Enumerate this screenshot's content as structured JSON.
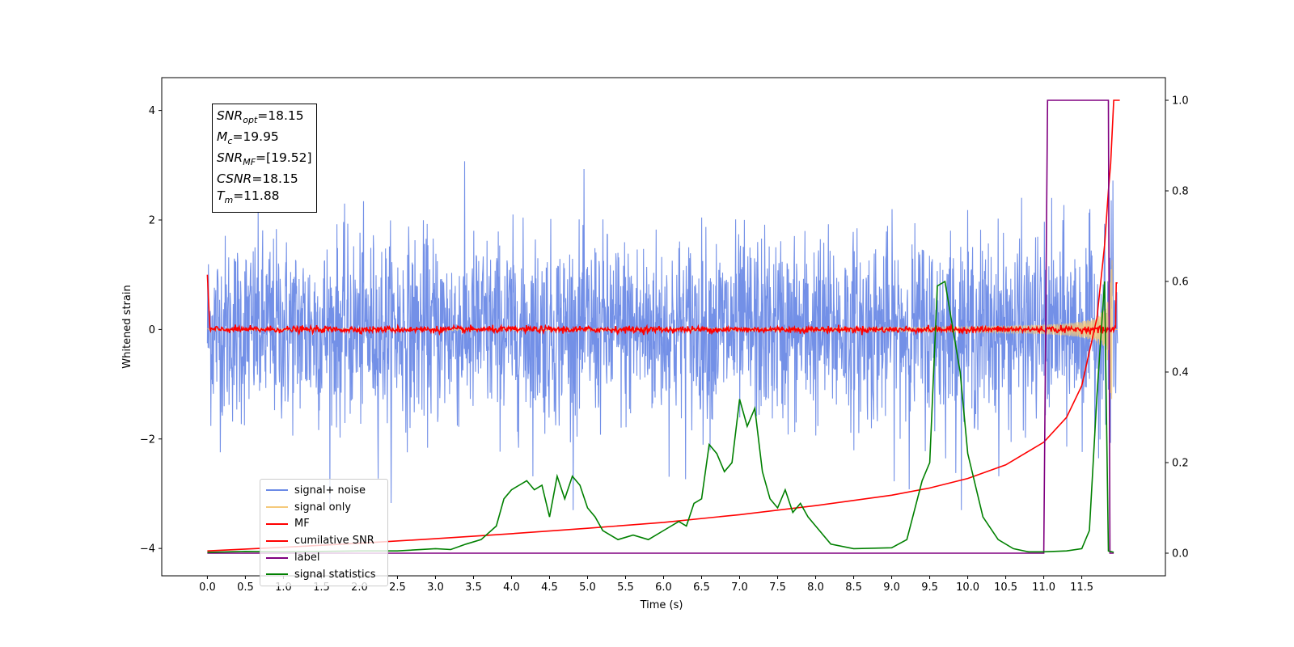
{
  "chart_data": {
    "type": "line",
    "xlabel": "Time (s)",
    "ylabel": "Whitened strain",
    "x_ticks": [
      "0.0",
      "0.5",
      "1.0",
      "1.5",
      "2.0",
      "2.5",
      "3.0",
      "3.5",
      "4.0",
      "4.5",
      "5.0",
      "5.5",
      "6.0",
      "6.5",
      "7.0",
      "7.5",
      "8.0",
      "8.5",
      "9.0",
      "9.5",
      "10.0",
      "10.5",
      "11.0",
      "11.5"
    ],
    "y_left_ticks": [
      "−4",
      "−2",
      "0",
      "2",
      "4"
    ],
    "y_right_ticks": [
      "0.0",
      "0.2",
      "0.4",
      "0.6",
      "0.8",
      "1.0"
    ],
    "xlim": [
      -0.6,
      12.6
    ],
    "ylim_left": [
      -4.5,
      4.6
    ],
    "ylim_right": [
      -0.05,
      1.05
    ],
    "grid": false,
    "legend_position": "lower-left",
    "series": [
      {
        "name": "signal+ noise",
        "color": "#6b8ae6",
        "axis": "left",
        "description": "noisy whitened strain, amplitude ~ ±2 with peaks to ~3"
      },
      {
        "name": "signal only",
        "color": "#f5c97a",
        "axis": "left",
        "description": "chirp growing from 0 to ~±1.5 near 11.85 s"
      },
      {
        "name": "MF",
        "color": "#ff0000",
        "axis": "left",
        "description": "matched-filter output, ~0 with small noise"
      },
      {
        "name": "cumilative SNR",
        "color": "#ff0000",
        "axis": "right",
        "x": [
          0.0,
          1.0,
          2.0,
          3.0,
          4.0,
          5.0,
          6.0,
          7.0,
          8.0,
          9.0,
          9.5,
          10.0,
          10.5,
          11.0,
          11.3,
          11.5,
          11.7,
          11.8,
          11.85,
          11.88,
          11.92,
          12.0
        ],
        "y": [
          0.005,
          0.013,
          0.022,
          0.032,
          0.043,
          0.055,
          0.068,
          0.085,
          0.105,
          0.128,
          0.144,
          0.165,
          0.195,
          0.245,
          0.3,
          0.37,
          0.52,
          0.68,
          0.8,
          0.86,
          1.0,
          1.0
        ]
      },
      {
        "name": "label",
        "color": "#800080",
        "axis": "right",
        "x": [
          0.0,
          11.0,
          11.05,
          11.85,
          11.87,
          11.92
        ],
        "y": [
          0.0,
          0.0,
          1.0,
          1.0,
          0.0,
          0.0
        ]
      },
      {
        "name": "signal statistics",
        "color": "#008000",
        "axis": "right",
        "x": [
          0.0,
          0.5,
          1.0,
          1.5,
          2.0,
          2.5,
          3.0,
          3.2,
          3.4,
          3.6,
          3.8,
          3.9,
          4.0,
          4.1,
          4.2,
          4.3,
          4.4,
          4.5,
          4.6,
          4.7,
          4.8,
          4.9,
          5.0,
          5.1,
          5.2,
          5.4,
          5.6,
          5.8,
          6.0,
          6.2,
          6.3,
          6.4,
          6.5,
          6.6,
          6.7,
          6.8,
          6.9,
          7.0,
          7.1,
          7.2,
          7.3,
          7.4,
          7.5,
          7.6,
          7.7,
          7.8,
          7.9,
          8.0,
          8.2,
          8.5,
          9.0,
          9.2,
          9.4,
          9.5,
          9.6,
          9.7,
          9.8,
          9.9,
          10.0,
          10.2,
          10.4,
          10.6,
          10.8,
          11.0,
          11.3,
          11.5,
          11.6,
          11.7,
          11.8,
          11.85,
          11.92
        ],
        "y": [
          0.002,
          0.004,
          0.003,
          0.004,
          0.005,
          0.005,
          0.01,
          0.008,
          0.02,
          0.03,
          0.06,
          0.12,
          0.14,
          0.15,
          0.16,
          0.14,
          0.15,
          0.08,
          0.17,
          0.12,
          0.17,
          0.15,
          0.1,
          0.08,
          0.05,
          0.03,
          0.04,
          0.03,
          0.05,
          0.07,
          0.06,
          0.11,
          0.12,
          0.24,
          0.22,
          0.18,
          0.2,
          0.34,
          0.28,
          0.32,
          0.18,
          0.12,
          0.1,
          0.14,
          0.09,
          0.11,
          0.08,
          0.06,
          0.02,
          0.01,
          0.012,
          0.03,
          0.16,
          0.2,
          0.59,
          0.6,
          0.5,
          0.4,
          0.22,
          0.08,
          0.03,
          0.01,
          0.003,
          0.003,
          0.005,
          0.01,
          0.05,
          0.35,
          0.6,
          0.005,
          0.002
        ]
      }
    ]
  },
  "infobox": {
    "snr_opt_sym": "SNR",
    "snr_opt_sub": "opt",
    "snr_opt_val": "=18.15",
    "mc_sym": "M",
    "mc_sub": "c",
    "mc_val": "=19.95",
    "snr_mf_sym": "SNR",
    "snr_mf_sub": "MF",
    "snr_mf_val": "=[19.52]",
    "csnr_sym": "CSNR",
    "csnr_val": "=18.15",
    "tm_sym": "T",
    "tm_sub": "m",
    "tm_val": "=11.88"
  },
  "legend": [
    {
      "label": "signal+ noise",
      "color": "#6b8ae6"
    },
    {
      "label": "signal only",
      "color": "#f5c97a"
    },
    {
      "label": "MF",
      "color": "#ff0000"
    },
    {
      "label": "cumilative SNR",
      "color": "#ff0000"
    },
    {
      "label": "label",
      "color": "#800080"
    },
    {
      "label": "signal statistics",
      "color": "#008000"
    }
  ]
}
